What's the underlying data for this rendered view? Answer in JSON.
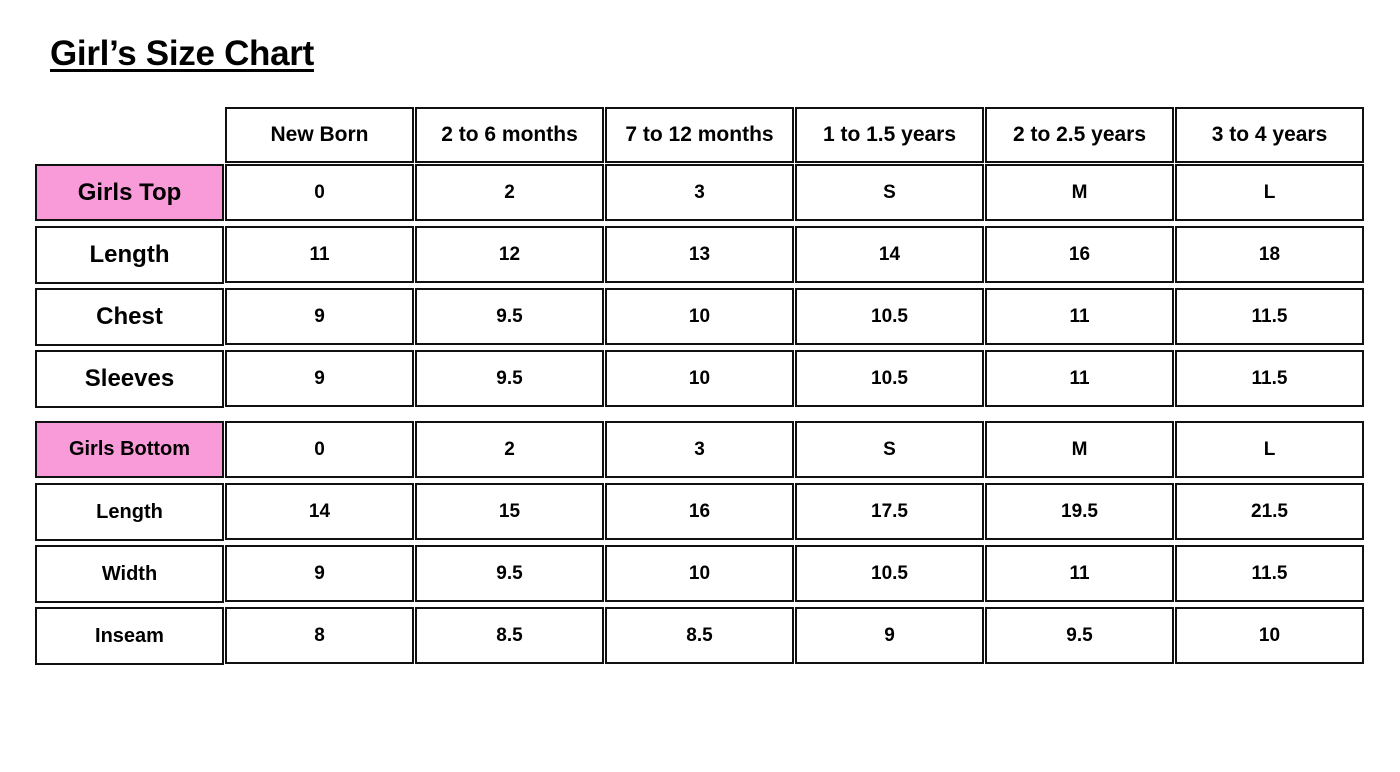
{
  "title": "Girl’s Size Chart",
  "colors": {
    "section_label_bg": "#f99ad9",
    "border": "#111111"
  },
  "columns": [
    "New Born",
    "2 to 6 months",
    "7 to 12 months",
    "1 to 1.5 years",
    "2 to 2.5 years",
    "3 to 4 years"
  ],
  "sections": [
    {
      "label": "Girls Top",
      "sizes": [
        "0",
        "2",
        "3",
        "S",
        "M",
        "L"
      ],
      "rows": [
        {
          "label": "Length",
          "values": [
            "11",
            "12",
            "13",
            "14",
            "16",
            "18"
          ]
        },
        {
          "label": "Chest",
          "values": [
            "9",
            "9.5",
            "10",
            "10.5",
            "11",
            "11.5"
          ]
        },
        {
          "label": "Sleeves",
          "values": [
            "9",
            "9.5",
            "10",
            "10.5",
            "11",
            "11.5"
          ]
        }
      ]
    },
    {
      "label": "Girls Bottom",
      "sizes": [
        "0",
        "2",
        "3",
        "S",
        "M",
        "L"
      ],
      "rows": [
        {
          "label": "Length",
          "values": [
            "14",
            "15",
            "16",
            "17.5",
            "19.5",
            "21.5"
          ]
        },
        {
          "label": "Width",
          "values": [
            "9",
            "9.5",
            "10",
            "10.5",
            "11",
            "11.5"
          ]
        },
        {
          "label": "Inseam",
          "values": [
            "8",
            "8.5",
            "8.5",
            "9",
            "9.5",
            "10"
          ]
        }
      ]
    }
  ]
}
